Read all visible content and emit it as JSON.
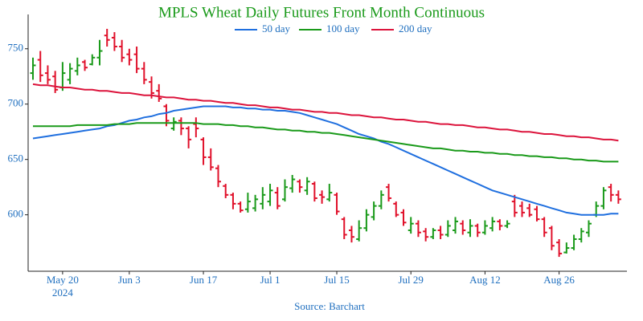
{
  "chart_data": {
    "type": "ohlc",
    "title": "MPLS Wheat Daily Futures Front Month Continuous",
    "source": "Source: Barchart",
    "x": [
      "2024-05-14",
      "2024-05-15",
      "2024-05-16",
      "2024-05-17",
      "2024-05-20",
      "2024-05-21",
      "2024-05-22",
      "2024-05-23",
      "2024-05-24",
      "2024-05-28",
      "2024-05-29",
      "2024-05-30",
      "2024-05-31",
      "2024-06-03",
      "2024-06-04",
      "2024-06-05",
      "2024-06-06",
      "2024-06-07",
      "2024-06-10",
      "2024-06-11",
      "2024-06-12",
      "2024-06-13",
      "2024-06-14",
      "2024-06-17",
      "2024-06-18",
      "2024-06-20",
      "2024-06-21",
      "2024-06-24",
      "2024-06-25",
      "2024-06-26",
      "2024-06-27",
      "2024-06-28",
      "2024-07-01",
      "2024-07-02",
      "2024-07-03",
      "2024-07-05",
      "2024-07-08",
      "2024-07-09",
      "2024-07-10",
      "2024-07-11",
      "2024-07-12",
      "2024-07-15",
      "2024-07-16",
      "2024-07-17",
      "2024-07-18",
      "2024-07-19",
      "2024-07-22",
      "2024-07-23",
      "2024-07-24",
      "2024-07-25",
      "2024-07-26",
      "2024-07-29",
      "2024-07-30",
      "2024-07-31",
      "2024-08-01",
      "2024-08-02",
      "2024-08-05",
      "2024-08-06",
      "2024-08-07",
      "2024-08-08",
      "2024-08-09",
      "2024-08-12",
      "2024-08-13",
      "2024-08-14",
      "2024-08-15",
      "2024-08-16",
      "2024-08-19",
      "2024-08-20",
      "2024-08-21",
      "2024-08-22",
      "2024-08-23",
      "2024-08-26",
      "2024-08-27",
      "2024-08-28",
      "2024-08-29",
      "2024-08-30",
      "2024-09-03",
      "2024-09-04",
      "2024-09-05",
      "2024-09-06"
    ],
    "open": [
      728,
      740,
      728,
      725,
      715,
      722,
      730,
      738,
      736,
      742,
      762,
      760,
      752,
      745,
      745,
      732,
      720,
      712,
      698,
      678,
      685,
      678,
      682,
      668,
      652,
      642,
      626,
      618,
      610,
      605,
      606,
      610,
      612,
      620,
      614,
      624,
      630,
      622,
      628,
      618,
      614,
      618,
      596,
      586,
      578,
      588,
      598,
      608,
      625,
      610,
      602,
      586,
      592,
      585,
      580,
      586,
      582,
      586,
      592,
      584,
      590,
      584,
      588,
      594,
      590,
      612,
      608,
      606,
      605,
      596,
      588,
      575,
      566,
      570,
      578,
      584,
      600,
      608,
      625,
      618
    ],
    "high": [
      742,
      748,
      735,
      730,
      738,
      737,
      742,
      740,
      745,
      758,
      768,
      765,
      758,
      750,
      752,
      738,
      725,
      718,
      700,
      688,
      688,
      680,
      688,
      670,
      660,
      645,
      628,
      620,
      612,
      620,
      618,
      625,
      628,
      625,
      632,
      636,
      632,
      634,
      630,
      622,
      628,
      620,
      598,
      590,
      595,
      605,
      612,
      622,
      628,
      612,
      605,
      598,
      595,
      588,
      588,
      590,
      595,
      598,
      595,
      596,
      592,
      595,
      598,
      596,
      595,
      618,
      612,
      610,
      608,
      598,
      590,
      578,
      575,
      582,
      588,
      595,
      612,
      625,
      628,
      622
    ],
    "low": [
      722,
      720,
      718,
      710,
      712,
      718,
      726,
      730,
      735,
      735,
      752,
      748,
      738,
      735,
      728,
      718,
      705,
      702,
      680,
      676,
      672,
      660,
      670,
      645,
      640,
      625,
      615,
      605,
      602,
      602,
      603,
      605,
      608,
      605,
      612,
      620,
      620,
      618,
      612,
      610,
      612,
      600,
      578,
      575,
      576,
      585,
      595,
      605,
      612,
      598,
      590,
      583,
      580,
      576,
      578,
      578,
      580,
      583,
      582,
      580,
      580,
      582,
      585,
      586,
      588,
      598,
      598,
      598,
      594,
      580,
      568,
      562,
      565,
      568,
      575,
      580,
      598,
      605,
      612,
      610
    ],
    "close": [
      735,
      726,
      722,
      713,
      728,
      732,
      735,
      733,
      742,
      748,
      758,
      752,
      742,
      740,
      732,
      722,
      710,
      705,
      685,
      684,
      678,
      668,
      678,
      652,
      643,
      630,
      618,
      610,
      604,
      612,
      614,
      618,
      622,
      608,
      625,
      632,
      625,
      630,
      615,
      616,
      620,
      603,
      582,
      580,
      588,
      600,
      608,
      618,
      615,
      600,
      593,
      592,
      584,
      580,
      586,
      582,
      590,
      594,
      586,
      590,
      584,
      590,
      594,
      590,
      592,
      602,
      602,
      600,
      596,
      584,
      572,
      565,
      570,
      578,
      585,
      592,
      608,
      622,
      618,
      614
    ],
    "up_color": "#1a9a1a",
    "down_color": "#e0102a",
    "series": [
      {
        "name": "50 day",
        "color": "#1f6fdf",
        "values": [
          669,
          670,
          671,
          672,
          673,
          674,
          675,
          676,
          677,
          678,
          680,
          681,
          683,
          685,
          686,
          688,
          689,
          691,
          692,
          694,
          695,
          696,
          697,
          698,
          698,
          698,
          698,
          697,
          697,
          696,
          696,
          695,
          695,
          694,
          694,
          693,
          692,
          690,
          688,
          686,
          684,
          682,
          679,
          676,
          673,
          671,
          669,
          666,
          664,
          661,
          658,
          655,
          652,
          649,
          646,
          643,
          640,
          637,
          634,
          631,
          628,
          625,
          622,
          620,
          618,
          616,
          614,
          612,
          610,
          608,
          606,
          604,
          602,
          601,
          600,
          600,
          600,
          600,
          601,
          601
        ]
      },
      {
        "name": "100 day",
        "color": "#1a9a1a",
        "values": [
          680,
          680,
          680,
          680,
          680,
          680,
          681,
          681,
          681,
          681,
          681,
          682,
          682,
          682,
          683,
          683,
          683,
          683,
          683,
          683,
          683,
          683,
          683,
          682,
          682,
          682,
          681,
          681,
          680,
          680,
          679,
          679,
          678,
          677,
          677,
          676,
          676,
          675,
          675,
          674,
          674,
          673,
          672,
          671,
          670,
          669,
          668,
          667,
          666,
          665,
          664,
          663,
          662,
          661,
          660,
          660,
          659,
          658,
          658,
          657,
          657,
          656,
          656,
          655,
          655,
          654,
          654,
          653,
          653,
          652,
          652,
          651,
          651,
          650,
          650,
          649,
          649,
          648,
          648,
          648
        ]
      },
      {
        "name": "200 day",
        "color": "#dc143c",
        "values": [
          718,
          717,
          717,
          716,
          715,
          715,
          714,
          713,
          713,
          712,
          712,
          711,
          710,
          710,
          709,
          708,
          708,
          707,
          706,
          706,
          705,
          704,
          704,
          703,
          703,
          702,
          701,
          701,
          700,
          699,
          699,
          698,
          697,
          697,
          696,
          695,
          695,
          694,
          693,
          693,
          692,
          692,
          691,
          690,
          690,
          689,
          688,
          688,
          687,
          686,
          686,
          685,
          684,
          684,
          683,
          682,
          682,
          681,
          681,
          680,
          679,
          679,
          678,
          677,
          677,
          676,
          675,
          675,
          674,
          673,
          673,
          672,
          671,
          671,
          670,
          670,
          669,
          668,
          668,
          667
        ]
      }
    ],
    "ylim": [
      549,
      781
    ],
    "yticks": [
      600,
      650,
      700,
      750
    ],
    "xticks": [
      {
        "value": "2024-05-20",
        "label": "May 20"
      },
      {
        "value": "2024-06-03",
        "label": "Jun 3"
      },
      {
        "value": "2024-06-17",
        "label": "Jun 17"
      },
      {
        "value": "2024-07-01",
        "label": "Jul 1"
      },
      {
        "value": "2024-07-15",
        "label": "Jul 15"
      },
      {
        "value": "2024-07-29",
        "label": "Jul 29"
      },
      {
        "value": "2024-08-12",
        "label": "Aug 12"
      },
      {
        "value": "2024-08-26",
        "label": "Aug 26"
      }
    ],
    "x_year_label": "2024",
    "legend_position": "top"
  }
}
